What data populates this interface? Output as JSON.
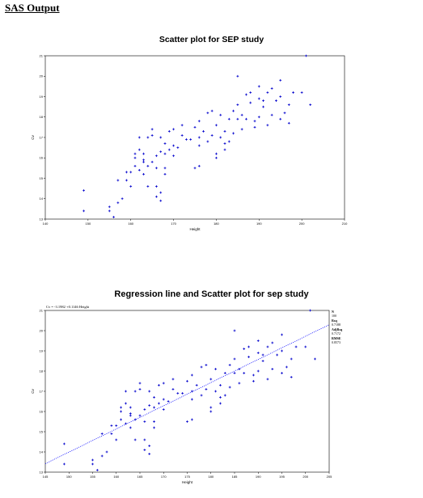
{
  "page": {
    "heading": "SAS Output"
  },
  "chart_data": [
    {
      "type": "scatter",
      "title": "Scatter plot for SEP study",
      "xlabel": "Height",
      "ylabel": "Cv",
      "xlim": [
        140,
        210
      ],
      "ylim": [
        13,
        21
      ],
      "xticks": [
        140,
        150,
        160,
        170,
        180,
        190,
        200,
        210
      ],
      "yticks": [
        13,
        14,
        15,
        16,
        17,
        18,
        19,
        20,
        21
      ],
      "marker_color": "#0000cc",
      "points": [
        [
          149,
          14.4
        ],
        [
          149,
          13.4
        ],
        [
          155,
          13.4
        ],
        [
          155,
          13.6
        ],
        [
          156,
          13.1
        ],
        [
          157,
          13.8
        ],
        [
          158,
          14.0
        ],
        [
          157,
          14.9
        ],
        [
          159,
          14.9
        ],
        [
          159,
          15.3
        ],
        [
          160,
          14.6
        ],
        [
          160,
          15.3
        ],
        [
          161,
          15.6
        ],
        [
          161,
          16.0
        ],
        [
          161,
          16.2
        ],
        [
          162,
          15.4
        ],
        [
          162,
          16.4
        ],
        [
          162,
          17.0
        ],
        [
          163,
          15.2
        ],
        [
          163,
          15.9
        ],
        [
          163,
          16.2
        ],
        [
          164,
          14.6
        ],
        [
          164,
          15.6
        ],
        [
          164,
          17.0
        ],
        [
          165,
          15.8
        ],
        [
          165,
          17.1
        ],
        [
          165,
          17.4
        ],
        [
          166,
          14.1
        ],
        [
          166,
          14.6
        ],
        [
          166,
          15.5
        ],
        [
          166,
          16.1
        ],
        [
          167,
          13.9
        ],
        [
          167,
          14.3
        ],
        [
          167,
          16.3
        ],
        [
          167,
          17.0
        ],
        [
          168,
          15.2
        ],
        [
          168,
          15.5
        ],
        [
          168,
          16.7
        ],
        [
          169,
          16.4
        ],
        [
          169,
          17.3
        ],
        [
          170,
          16.1
        ],
        [
          170,
          16.6
        ],
        [
          171,
          16.5
        ],
        [
          172,
          17.1
        ],
        [
          172,
          17.6
        ],
        [
          173,
          16.9
        ],
        [
          174,
          16.9
        ],
        [
          175,
          15.5
        ],
        [
          175,
          17.5
        ],
        [
          176,
          15.6
        ],
        [
          176,
          16.6
        ],
        [
          176,
          17.8
        ],
        [
          177,
          17.3
        ],
        [
          178,
          18.2
        ],
        [
          178,
          16.8
        ],
        [
          179,
          18.3
        ],
        [
          179,
          17.1
        ],
        [
          180,
          16.0
        ],
        [
          180,
          16.2
        ],
        [
          180,
          17.6
        ],
        [
          181,
          17.0
        ],
        [
          181,
          18.1
        ],
        [
          182,
          16.4
        ],
        [
          182,
          17.3
        ],
        [
          183,
          16.8
        ],
        [
          183,
          17.9
        ],
        [
          184,
          17.2
        ],
        [
          184,
          18.3
        ],
        [
          185,
          17.9
        ],
        [
          185,
          18.6
        ],
        [
          186,
          17.4
        ],
        [
          186,
          18.1
        ],
        [
          187,
          17.9
        ],
        [
          187,
          19.1
        ],
        [
          188,
          18.7
        ],
        [
          188,
          19.2
        ],
        [
          189,
          17.5
        ],
        [
          189,
          17.8
        ],
        [
          190,
          18.0
        ],
        [
          190,
          18.9
        ],
        [
          190,
          19.5
        ],
        [
          191,
          18.5
        ],
        [
          191,
          18.8
        ],
        [
          192,
          17.6
        ],
        [
          192,
          19.2
        ],
        [
          193,
          18.1
        ],
        [
          194,
          18.8
        ],
        [
          195,
          17.9
        ],
        [
          195,
          19.0
        ],
        [
          195,
          19.8
        ],
        [
          196,
          18.2
        ],
        [
          197,
          18.6
        ],
        [
          197,
          17.7
        ],
        [
          198,
          19.2
        ],
        [
          200,
          19.2
        ],
        [
          201,
          21.0
        ],
        [
          202,
          18.6
        ],
        [
          185,
          20.0
        ],
        [
          170,
          17.4
        ],
        [
          176,
          17.0
        ],
        [
          193,
          19.4
        ],
        [
          182,
          16.7
        ],
        [
          163,
          15.8
        ],
        [
          168,
          16.2
        ]
      ]
    },
    {
      "type": "scatter",
      "title": "Regression line and Scatter plot for sep study",
      "equation": "Cv = -3.1982 +0.1146 Height",
      "xlabel": "Height",
      "ylabel": "Cv",
      "xlim": [
        145,
        205
      ],
      "ylim": [
        13,
        21
      ],
      "xticks": [
        145,
        150,
        155,
        160,
        165,
        170,
        175,
        180,
        185,
        190,
        195,
        200,
        205
      ],
      "yticks": [
        13,
        14,
        15,
        16,
        17,
        18,
        19,
        20,
        21
      ],
      "marker_color": "#0000cc",
      "regression": {
        "intercept": -3.1982,
        "slope": 0.1146,
        "line_color": "#0000ff"
      },
      "stats": [
        {
          "label": "N",
          "value": "100"
        },
        {
          "label": "Rsq",
          "value": "0.7188"
        },
        {
          "label": "AdjRsq",
          "value": "0.7172"
        },
        {
          "label": "RMSE",
          "value": "0.8573"
        }
      ]
    }
  ]
}
